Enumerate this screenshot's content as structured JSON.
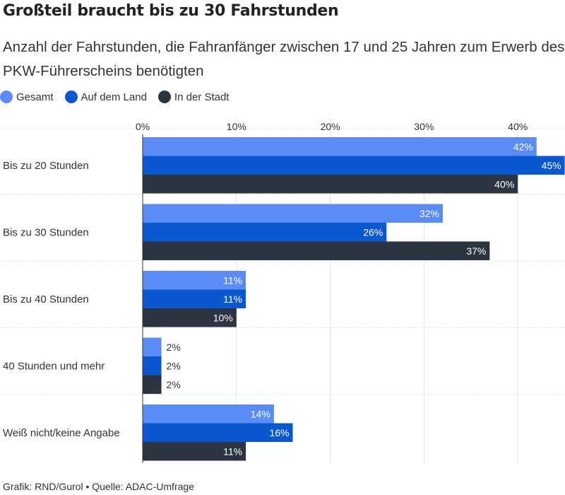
{
  "header": {
    "title": "Großteil braucht bis zu 30 Fahrstunden",
    "subtitle": "Anzahl der Fahrstunden, die Fahranfänger zwischen 17 und 25 Jahren zum Erwerb des PKW-Führerscheins benötigten"
  },
  "legend": {
    "items": [
      {
        "label": "Gesamt",
        "color": "#5b8cf5"
      },
      {
        "label": "Auf dem Land",
        "color": "#0b57d0"
      },
      {
        "label": "In der Stadt",
        "color": "#2b3440"
      }
    ]
  },
  "chart_data": {
    "type": "bar",
    "orientation": "horizontal",
    "categories": [
      "Bis zu 20 Stunden",
      "Bis zu 30 Stunden",
      "Bis zu 40 Stunden",
      "40 Stunden und mehr",
      "Weiß nicht/keine Angabe"
    ],
    "series": [
      {
        "name": "Gesamt",
        "values": [
          42,
          32,
          11,
          2,
          14
        ],
        "color": "#5b8cf5"
      },
      {
        "name": "Auf dem Land",
        "values": [
          45,
          26,
          11,
          2,
          16
        ],
        "color": "#0b57d0"
      },
      {
        "name": "In der Stadt",
        "values": [
          40,
          37,
          10,
          2,
          11
        ],
        "color": "#2b3440"
      }
    ],
    "value_suffix": "%",
    "xticks": [
      0,
      10,
      20,
      30,
      40
    ],
    "xtick_labels": [
      "0%",
      "10%",
      "20%",
      "30%",
      "40%"
    ],
    "xlim": [
      0,
      45
    ],
    "grid": true,
    "legend_position": "top-left"
  },
  "footer": {
    "source": "Grafik: RND/Gurol • Quelle: ADAC-Umfrage"
  }
}
